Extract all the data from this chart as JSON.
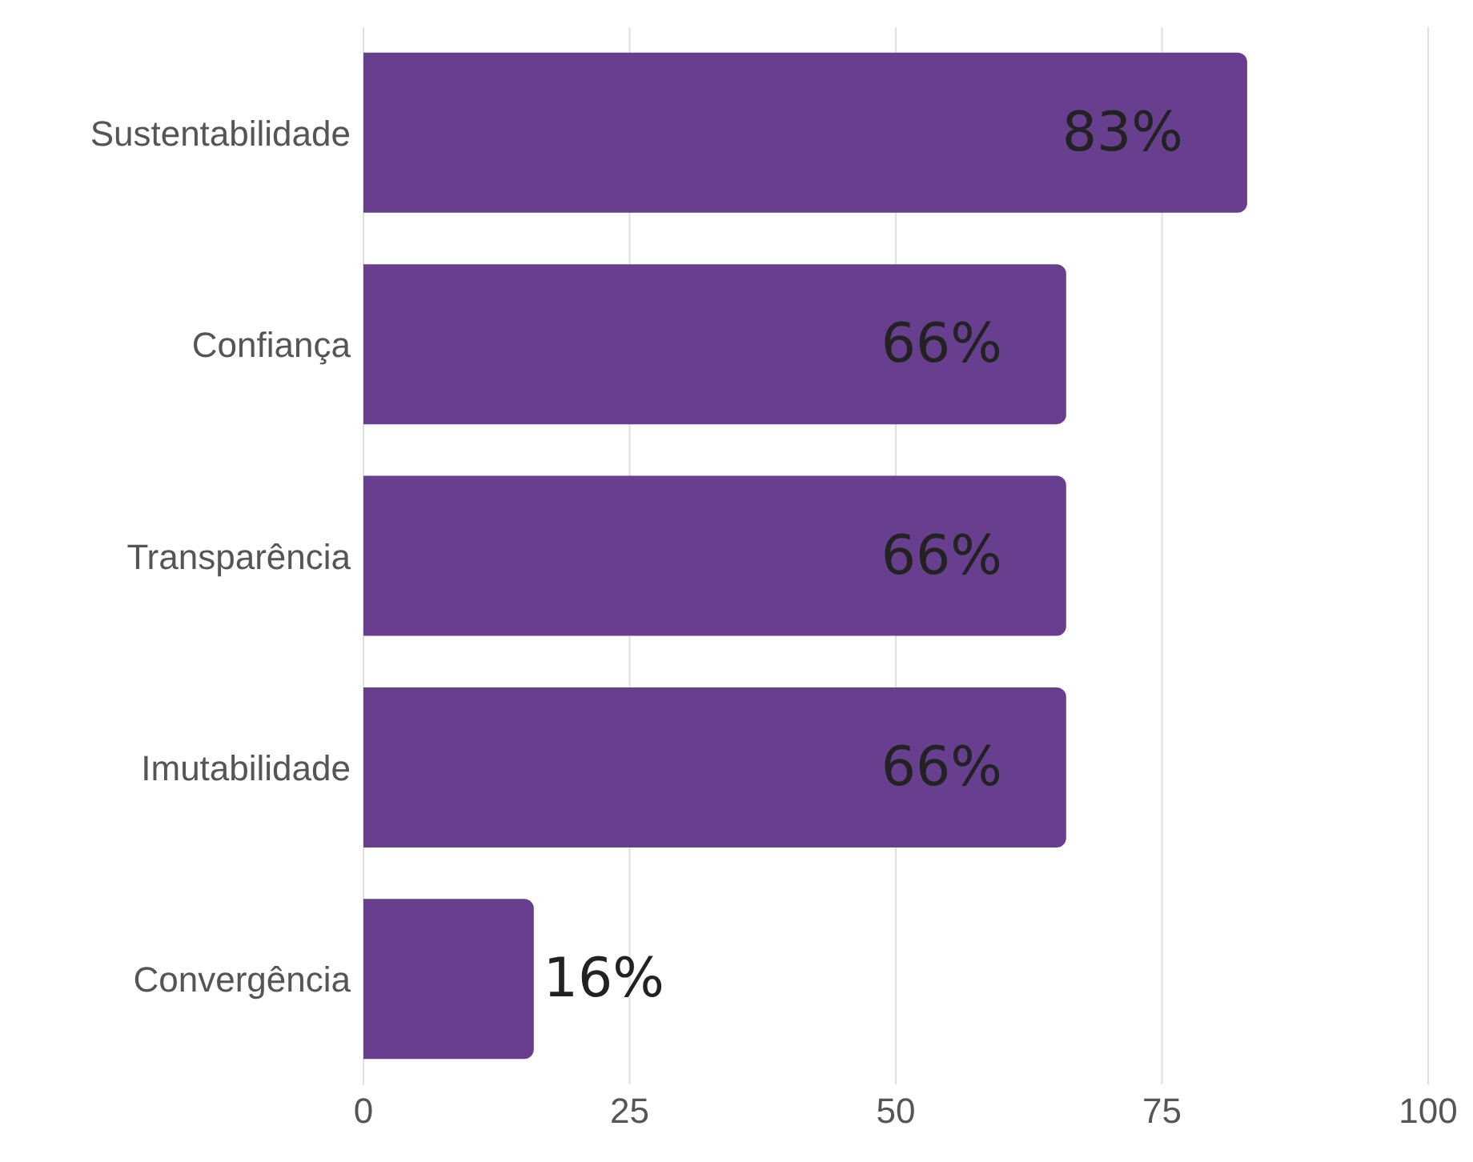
{
  "chart_data": {
    "type": "bar",
    "orientation": "horizontal",
    "categories": [
      "Sustentabilidade",
      "Confiança",
      "Transparência",
      "Imutabilidade",
      "Convergência"
    ],
    "values": [
      83,
      66,
      66,
      66,
      16
    ],
    "value_labels": [
      "83%",
      "66%",
      "66%",
      "66%",
      "16%"
    ],
    "color": "#673f8e",
    "xlim": [
      0,
      100
    ],
    "xticks": [
      0,
      25,
      50,
      75,
      100
    ],
    "grid": "x"
  }
}
